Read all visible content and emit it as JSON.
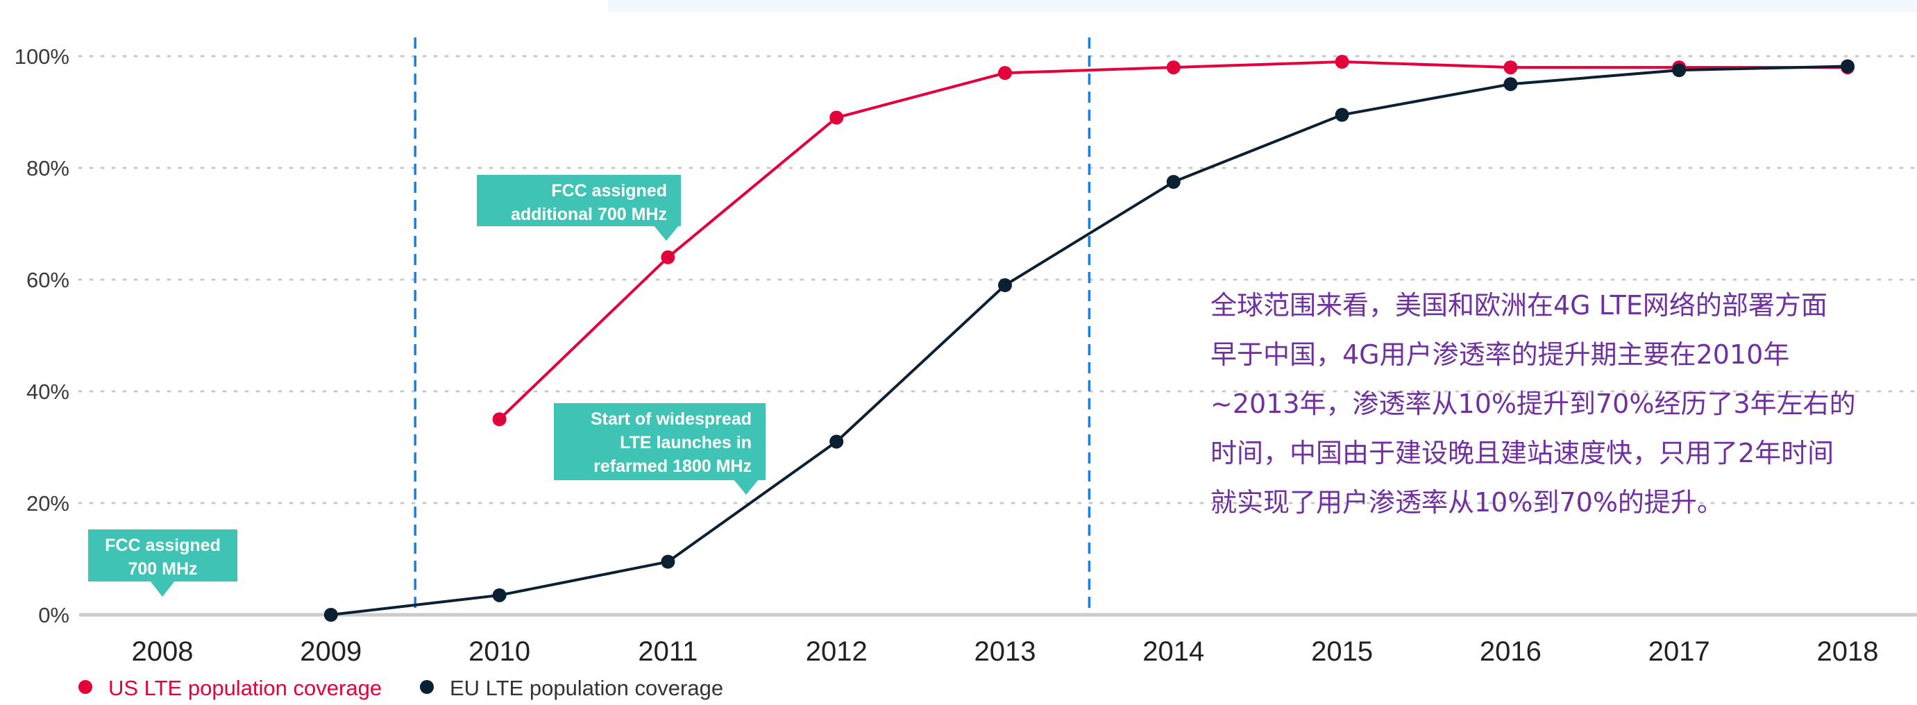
{
  "chart_data": {
    "type": "line",
    "x": [
      2008,
      2009,
      2010,
      2011,
      2012,
      2013,
      2014,
      2015,
      2016,
      2017,
      2018
    ],
    "xticks": [
      "2008",
      "2009",
      "2010",
      "2011",
      "2012",
      "2013",
      "2014",
      "2015",
      "2016",
      "2017",
      "2018"
    ],
    "yticks": [
      "0%",
      "20%",
      "40%",
      "60%",
      "80%",
      "100%"
    ],
    "ylim": [
      0,
      100
    ],
    "grid": "horizontal-dotted",
    "series": [
      {
        "name": "US LTE population coverage",
        "color": "#e4003b",
        "x": [
          2010,
          2011,
          2012,
          2013,
          2014,
          2015,
          2016,
          2017,
          2018
        ],
        "values": [
          35,
          64,
          89,
          97,
          98,
          99,
          98,
          98,
          98
        ]
      },
      {
        "name": "EU LTE population coverage",
        "color": "#0c2033",
        "x": [
          2009,
          2010,
          2011,
          2012,
          2013,
          2014,
          2015,
          2016,
          2017,
          2018
        ],
        "values": [
          0,
          3.5,
          9.5,
          31,
          59,
          77.5,
          89.5,
          95,
          97.5,
          98.2
        ]
      }
    ],
    "reference_lines": [
      2009.5,
      2013.5
    ],
    "annotations": [
      {
        "lines": [
          "FCC assigned",
          "700 MHz"
        ],
        "x": 2008
      },
      {
        "lines": [
          "FCC assigned",
          "additional 700 MHz"
        ],
        "x": 2011
      },
      {
        "lines": [
          "Start of widespread",
          "LTE launches in",
          "refarmed 1800 MHz"
        ],
        "x": 2011.5
      }
    ],
    "annotation_color": "#3fc3b5",
    "legend": "bottom-left"
  },
  "note": {
    "color": "#7030a0",
    "lines": [
      "全球范围来看，美国和欧洲在4G LTE网络的部署方面",
      "早于中国，4G用户渗透率的提升期主要在2010年",
      "~2013年，渗透率从10%提升到70%经历了3年左右的",
      "时间，中国由于建设晚且建站速度快，只用了2年时间",
      "就实现了用户渗透率从10%到70%的提升。"
    ]
  }
}
